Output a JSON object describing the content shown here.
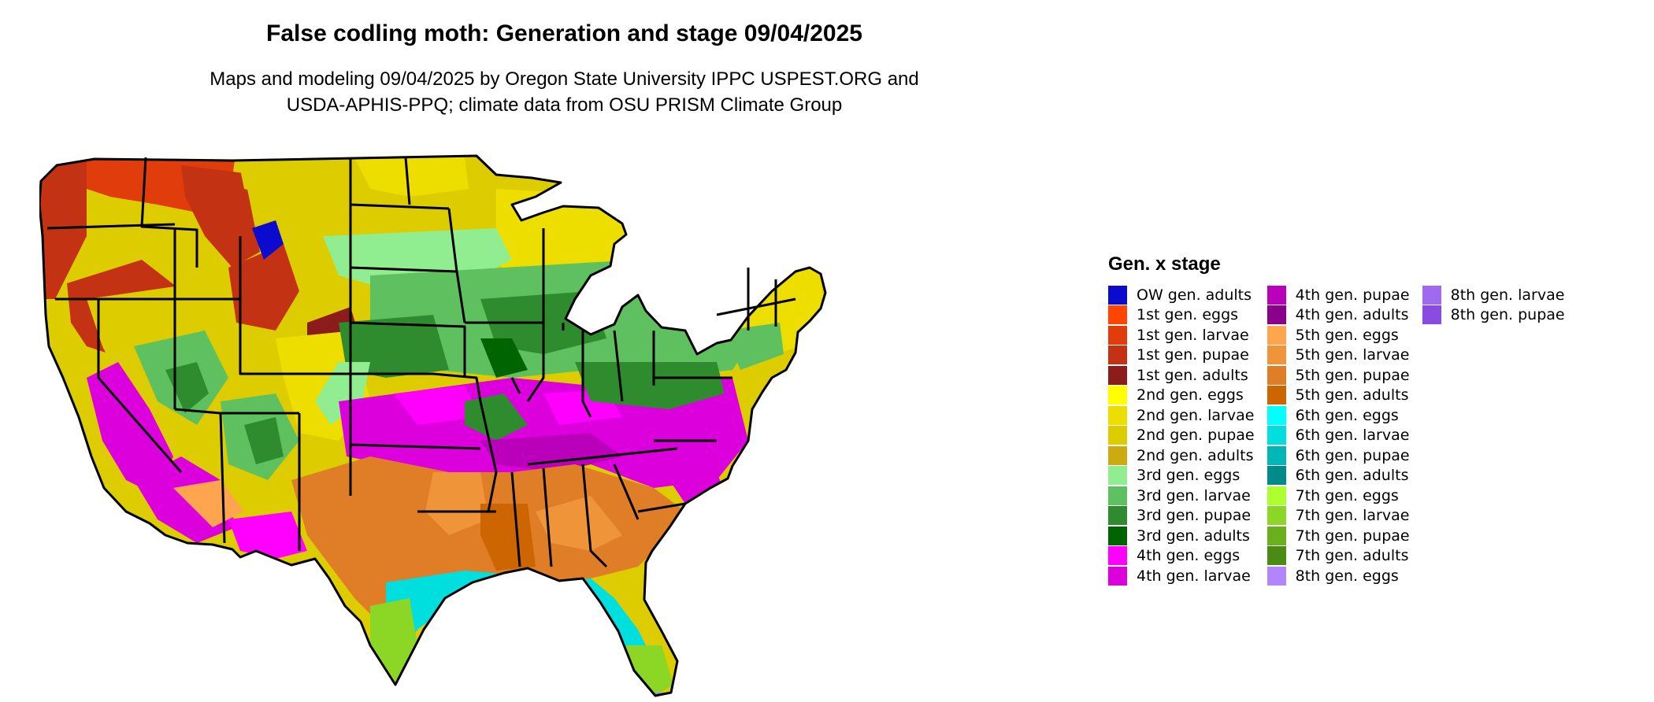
{
  "title": "False codling moth: Generation and stage 09/04/2025",
  "subtitle_line1": "Maps and modeling 09/04/2025 by Oregon State University IPPC USPEST.ORG and",
  "subtitle_line2": "USDA-APHIS-PPQ; climate data from OSU PRISM Climate Group",
  "legend": {
    "title": "Gen. x stage",
    "columns": [
      [
        {
          "label": "OW gen. adults",
          "color": "#0b0bd0"
        },
        {
          "label": "1st gen. eggs",
          "color": "#ff4500"
        },
        {
          "label": "1st gen. larvae",
          "color": "#e03c0c"
        },
        {
          "label": "1st gen. pupae",
          "color": "#c43214"
        },
        {
          "label": "1st gen. adults",
          "color": "#8c1b1b"
        },
        {
          "label": "2nd gen. eggs",
          "color": "#ffff00"
        },
        {
          "label": "2nd gen. larvae",
          "color": "#eede00"
        },
        {
          "label": "2nd gen. pupae",
          "color": "#ddcd00"
        },
        {
          "label": "2nd gen. adults",
          "color": "#cdaa0f"
        },
        {
          "label": "3rd gen. eggs",
          "color": "#90ee90"
        },
        {
          "label": "3rd gen. larvae",
          "color": "#5ec05e"
        },
        {
          "label": "3rd gen. pupae",
          "color": "#2e8b2e"
        },
        {
          "label": "3rd gen. adults",
          "color": "#006400"
        },
        {
          "label": "4th gen. eggs",
          "color": "#ff00ff"
        },
        {
          "label": "4th gen. larvae",
          "color": "#dc00dc"
        }
      ],
      [
        {
          "label": "4th gen. pupae",
          "color": "#bb00bb"
        },
        {
          "label": "4th gen. adults",
          "color": "#8b008b"
        },
        {
          "label": "5th gen. eggs",
          "color": "#ffa54f"
        },
        {
          "label": "5th gen. larvae",
          "color": "#f0943a"
        },
        {
          "label": "5th gen. pupae",
          "color": "#e07e28"
        },
        {
          "label": "5th gen. adults",
          "color": "#cd6600"
        },
        {
          "label": "6th gen. eggs",
          "color": "#00ffff"
        },
        {
          "label": "6th gen. larvae",
          "color": "#00dede"
        },
        {
          "label": "6th gen. pupae",
          "color": "#00b7b7"
        },
        {
          "label": "6th gen. adults",
          "color": "#008b8b"
        },
        {
          "label": "7th gen. eggs",
          "color": "#adff2f"
        },
        {
          "label": "7th gen. larvae",
          "color": "#8cd626"
        },
        {
          "label": "7th gen. pupae",
          "color": "#6ab01c"
        },
        {
          "label": "7th gen. adults",
          "color": "#4b8b13"
        },
        {
          "label": "8th gen. eggs",
          "color": "#b285ff"
        }
      ],
      [
        {
          "label": "8th gen. larvae",
          "color": "#9f6af0"
        },
        {
          "label": "8th gen. pupae",
          "color": "#8a4be0"
        }
      ]
    ]
  },
  "colors": {
    "state_border": "#000000",
    "background": "#ffffff"
  }
}
